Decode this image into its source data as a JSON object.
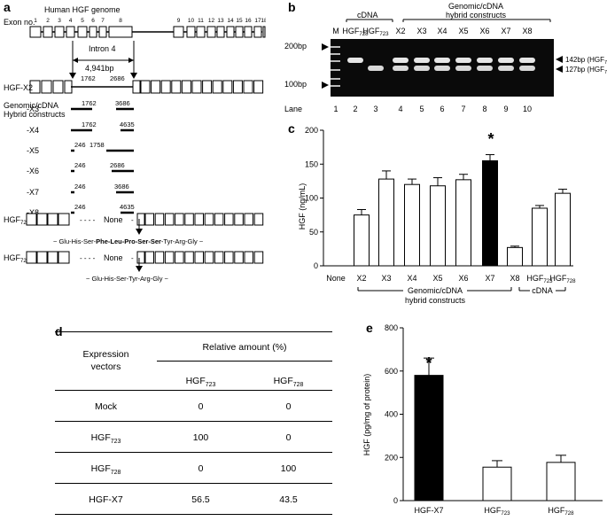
{
  "panels": {
    "a": "a",
    "b": "b",
    "c": "c",
    "d": "d",
    "e": "e"
  },
  "panel_a": {
    "genome_title": "Human HGF genome",
    "exon_label": "Exon no.",
    "exon_numbers": [
      "1",
      "2",
      "3",
      "4",
      "5",
      "6",
      "7",
      "8",
      "9",
      "10",
      "11",
      "12",
      "13",
      "14",
      "15",
      "16",
      "17",
      "18"
    ],
    "intron_label": "Intron 4",
    "intron_size": "4,941bp",
    "constructs_label_1": "Genomic/cDNA",
    "constructs_label_2": "Hybrid constructs",
    "constructs": [
      {
        "name": "HGF-X2",
        "left": "1762",
        "right": "2686"
      },
      {
        "name": "-X3",
        "left": "1762",
        "right": "3686"
      },
      {
        "name": "-X4",
        "left": "1762",
        "right": "4635"
      },
      {
        "name": "-X5",
        "left": "246",
        "right": "1758"
      },
      {
        "name": "-X6",
        "left": "246",
        "right": "2686"
      },
      {
        "name": "-X7",
        "left": "246",
        "right": "3686"
      },
      {
        "name": "-X8",
        "left": "246",
        "right": "4635"
      }
    ],
    "hgf728_name": "HGF",
    "hgf728_sub": "728",
    "hgf723_name": "HGF",
    "hgf723_sub": "723",
    "none_label": "None",
    "seq728_pre": "~ Glu-His-Ser-",
    "seq728_bold": "Phe-Leu-Pro-Ser-Ser",
    "seq728_post": "-Tyr-Arg-Gly ~",
    "seq723": "~ Glu-His-Ser-Tyr-Arg-Gly ~"
  },
  "panel_b": {
    "group_cdna": "cDNA",
    "group_hybrid_1": "Genomic/cDNA",
    "group_hybrid_2": "hybrid constructs",
    "lane_headers": [
      {
        "text": "M",
        "sub": ""
      },
      {
        "text": "HGF",
        "sub": "728"
      },
      {
        "text": "HGF",
        "sub": "723"
      },
      {
        "text": "X2",
        "sub": ""
      },
      {
        "text": "X3",
        "sub": ""
      },
      {
        "text": "X4",
        "sub": ""
      },
      {
        "text": "X5",
        "sub": ""
      },
      {
        "text": "X6",
        "sub": ""
      },
      {
        "text": "X7",
        "sub": ""
      },
      {
        "text": "X8",
        "sub": ""
      }
    ],
    "marker_200": "200bp",
    "marker_100": "100bp",
    "band_142": "142bp (HGF",
    "band_142_sub": "728",
    "band_127": "127bp (HGF",
    "band_127_sub": "723",
    "lane_label": "Lane",
    "lane_numbers": [
      "1",
      "2",
      "3",
      "4",
      "5",
      "6",
      "7",
      "8",
      "9",
      "10"
    ]
  },
  "chart_c": {
    "type": "bar",
    "ylabel": "HGF (ng/mL)",
    "ylim": [
      0,
      200
    ],
    "yticks": [
      "0",
      "50",
      "100",
      "150",
      "200"
    ],
    "categories": [
      "None",
      "X2",
      "X3",
      "X4",
      "X5",
      "X6",
      "X7",
      "X8",
      "HGF723",
      "HGF728"
    ],
    "category_labels": [
      {
        "text": "None",
        "sub": ""
      },
      {
        "text": "X2",
        "sub": ""
      },
      {
        "text": "X3",
        "sub": ""
      },
      {
        "text": "X4",
        "sub": ""
      },
      {
        "text": "X5",
        "sub": ""
      },
      {
        "text": "X6",
        "sub": ""
      },
      {
        "text": "X7",
        "sub": ""
      },
      {
        "text": "X8",
        "sub": ""
      },
      {
        "text": "HGF",
        "sub": "723"
      },
      {
        "text": "HGF",
        "sub": "728"
      }
    ],
    "values": [
      0,
      75,
      128,
      120,
      118,
      127,
      155,
      27,
      85,
      107
    ],
    "errors": [
      0,
      8,
      12,
      8,
      12,
      8,
      9,
      2,
      4,
      6
    ],
    "highlight": [
      "#ffffff",
      "#ffffff",
      "#ffffff",
      "#ffffff",
      "#ffffff",
      "#ffffff",
      "#000000",
      "#ffffff",
      "#ffffff",
      "#ffffff"
    ],
    "star": "*",
    "group_hybrid_1": "Genomic/cDNA",
    "group_hybrid_2": "hybrid constructs",
    "group_cdna": "cDNA"
  },
  "table_d": {
    "col0_1": "Expression",
    "col0_2": "vectors",
    "col_group": "Relative amount (%)",
    "col1": "HGF",
    "col1_sub": "723",
    "col2": "HGF",
    "col2_sub": "728",
    "rows": [
      {
        "name": "Mock",
        "sub": "",
        "v1": "0",
        "v2": "0"
      },
      {
        "name": "HGF",
        "sub": "723",
        "v1": "100",
        "v2": "0"
      },
      {
        "name": "HGF",
        "sub": "728",
        "v1": "0",
        "v2": "100"
      },
      {
        "name": "HGF-X7",
        "sub": "",
        "v1": "56.5",
        "v2": "43.5"
      }
    ]
  },
  "chart_e": {
    "type": "bar",
    "ylabel": "HGF (pg/mg of protein)",
    "ylim": [
      0,
      800
    ],
    "yticks": [
      "0",
      "200",
      "400",
      "600",
      "800"
    ],
    "categories": [
      "HGF-X7",
      "HGF723",
      "HGF728"
    ],
    "category_labels": [
      {
        "text": "HGF-X7",
        "sub": ""
      },
      {
        "text": "HGF",
        "sub": "723"
      },
      {
        "text": "HGF",
        "sub": "728"
      }
    ],
    "values": [
      580,
      155,
      177
    ],
    "errors": [
      80,
      30,
      33
    ],
    "highlight": [
      "#000000",
      "#ffffff",
      "#ffffff"
    ],
    "star": "*"
  },
  "chart_data": [
    {
      "type": "bar",
      "ylabel": "HGF (ng/mL)",
      "ylim": [
        0,
        200
      ],
      "categories": [
        "None",
        "X2",
        "X3",
        "X4",
        "X5",
        "X6",
        "X7",
        "X8",
        "HGF723",
        "HGF728"
      ],
      "values": [
        0,
        75,
        128,
        120,
        118,
        127,
        155,
        27,
        85,
        107
      ],
      "errors": [
        0,
        8,
        12,
        8,
        12,
        8,
        9,
        2,
        4,
        6
      ]
    },
    {
      "type": "bar",
      "ylabel": "HGF (pg/mg of protein)",
      "ylim": [
        0,
        800
      ],
      "categories": [
        "HGF-X7",
        "HGF723",
        "HGF728"
      ],
      "values": [
        580,
        155,
        177
      ],
      "errors": [
        80,
        30,
        33
      ]
    }
  ]
}
